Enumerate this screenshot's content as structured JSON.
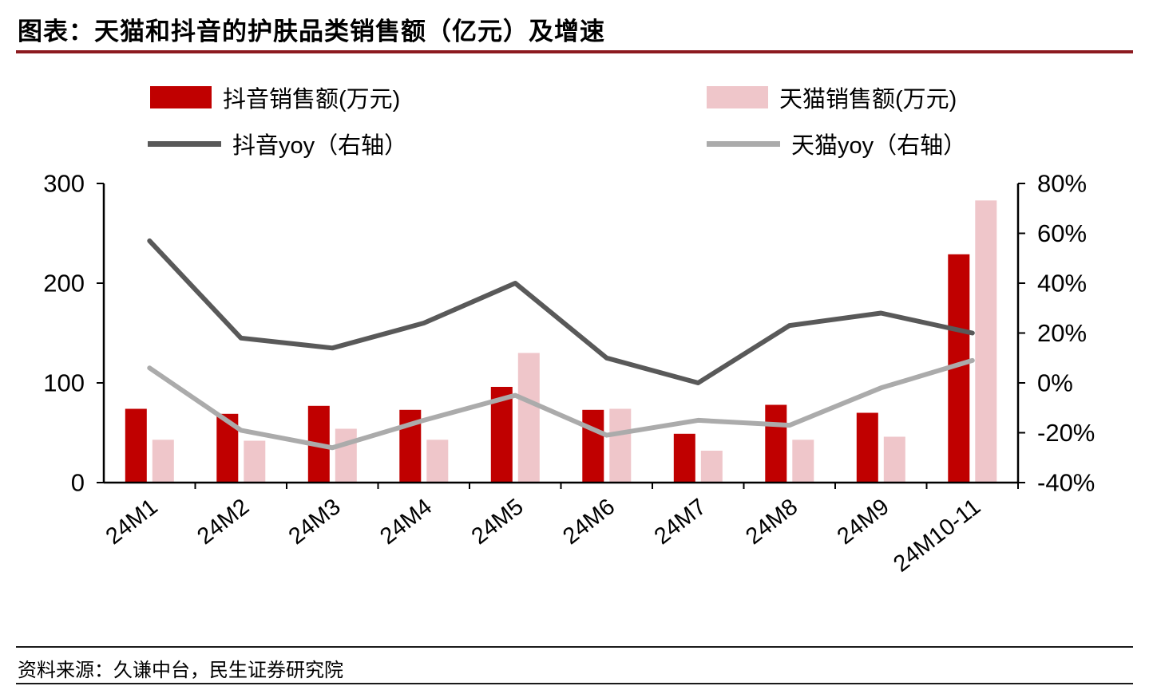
{
  "header": {
    "title": "图表：天猫和抖音的护肤品类销售额（亿元）及增速"
  },
  "footer": {
    "source": "资料来源：久谦中台，民生证券研究院"
  },
  "colors": {
    "accent_rule": "#8C1A1F",
    "axis": "#000000",
    "text": "#000000"
  },
  "chart_data": {
    "type": "bar+line",
    "title": "天猫和抖音的护肤品类销售额（亿元）及增速",
    "categories": [
      "24M1",
      "24M2",
      "24M3",
      "24M4",
      "24M5",
      "24M6",
      "24M7",
      "24M8",
      "24M9",
      "24M10-11"
    ],
    "series": [
      {
        "name": "抖音销售额(万元)",
        "kind": "bar",
        "axis": "left",
        "color": "#C00000",
        "values": [
          74,
          69,
          77,
          73,
          96,
          73,
          49,
          78,
          70,
          229
        ]
      },
      {
        "name": "天猫销售额(万元)",
        "kind": "bar",
        "axis": "left",
        "color": "#EFC6CA",
        "values": [
          43,
          42,
          54,
          43,
          130,
          74,
          32,
          43,
          46,
          283
        ]
      },
      {
        "name": "抖音yoy（右轴）",
        "kind": "line",
        "axis": "right",
        "color": "#595959",
        "unit": "%",
        "values": [
          57,
          18,
          14,
          24,
          40,
          10,
          0,
          23,
          28,
          20
        ]
      },
      {
        "name": "天猫yoy（右轴）",
        "kind": "line",
        "axis": "right",
        "color": "#ABABAB",
        "unit": "%",
        "values": [
          6,
          -19,
          -26,
          -15,
          -5,
          -21,
          -15,
          -17,
          -2,
          9
        ]
      }
    ],
    "left_axis": {
      "min": 0,
      "max": 300,
      "ticks": [
        {
          "value": 0,
          "label": "0"
        },
        {
          "value": 100,
          "label": "100"
        },
        {
          "value": 200,
          "label": "200"
        },
        {
          "value": 300,
          "label": "300"
        }
      ]
    },
    "right_axis": {
      "min": -40,
      "max": 80,
      "ticks": [
        {
          "value": -40,
          "label": "-40%"
        },
        {
          "value": -20,
          "label": "-20%"
        },
        {
          "value": 0,
          "label": "0%"
        },
        {
          "value": 20,
          "label": "20%"
        },
        {
          "value": 40,
          "label": "40%"
        },
        {
          "value": 60,
          "label": "60%"
        },
        {
          "value": 80,
          "label": "80%"
        }
      ]
    },
    "grid": false,
    "legend_position": "top"
  }
}
